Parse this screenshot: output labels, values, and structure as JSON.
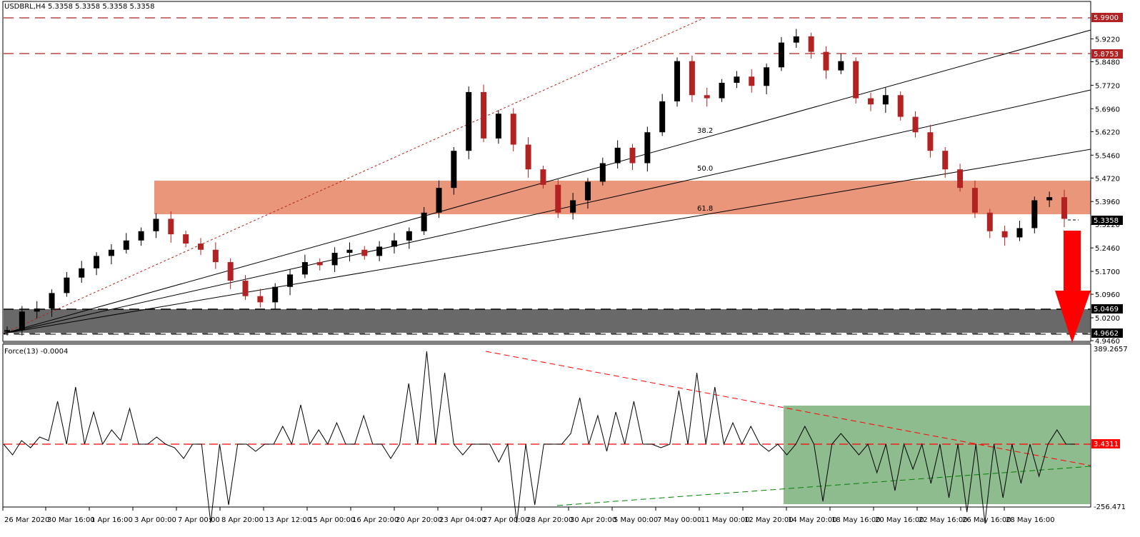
{
  "header": {
    "symbol_title": "USDBRL,H4  5.3358 5.3358 5.3358 5.3358"
  },
  "indicator": {
    "title": "Force(13) -0.0004",
    "axis_max": "389.2657",
    "axis_min": "-256.471",
    "level_label": "3.4311"
  },
  "price_axis": {
    "ticks": [
      "5.9220",
      "5.8480",
      "5.7720",
      "5.6960",
      "5.6220",
      "5.5460",
      "5.4720",
      "5.3960",
      "5.3220",
      "5.2460",
      "5.1700",
      "5.0960",
      "5.0200",
      "4.9460"
    ],
    "marked_levels": [
      {
        "label": "5.9900",
        "style": "red"
      },
      {
        "label": "5.8753",
        "style": "red"
      },
      {
        "label": "5.3358",
        "style": "black"
      },
      {
        "label": "5.0469",
        "style": "black"
      },
      {
        "label": "4.9662",
        "style": "black"
      }
    ]
  },
  "time_axis": {
    "ticks": [
      "26 Mar 2020",
      "30 Mar 16:00",
      "1 Apr 16:00",
      "3 Apr 00:00",
      "7 Apr 00:00",
      "8 Apr 20:00",
      "13 Apr 12:00",
      "15 Apr 00:00",
      "16 Apr 20:00",
      "20 Apr 20:00",
      "23 Apr 04:00",
      "27 Apr 00:00",
      "28 Apr 20:00",
      "30 Apr 20:00",
      "5 May 00:00",
      "7 May 00:00",
      "11 May 00:00",
      "12 May 20:00",
      "14 May 20:00",
      "18 May 16:00",
      "20 May 16:00",
      "22 May 16:00",
      "26 May 16:00",
      "28 May 16:00"
    ]
  },
  "fib_labels": [
    "38.2",
    "50.0",
    "61.8"
  ],
  "colors": {
    "bull_candle": "#000000",
    "bear_candle": "#b22222",
    "resistance_zone": "#e9967a",
    "support_zone": "#696969",
    "force_zone": "#8fbc8f",
    "arrow": "#ff0000",
    "level_tag_red": "#b22222",
    "force_level_tag": "#ff0000"
  },
  "chart_data": [
    {
      "type": "candlestick",
      "title": "USDBRL,H4",
      "ohlc_last": {
        "open": 5.3358,
        "high": 5.3358,
        "low": 5.3358,
        "close": 5.3358
      },
      "ylim": [
        4.946,
        5.99
      ],
      "x_ticks": [
        "26 Mar 2020",
        "30 Mar 16:00",
        "1 Apr 16:00",
        "3 Apr 00:00",
        "7 Apr 00:00",
        "8 Apr 20:00",
        "13 Apr 12:00",
        "15 Apr 00:00",
        "16 Apr 20:00",
        "20 Apr 20:00",
        "23 Apr 04:00",
        "27 Apr 00:00",
        "28 Apr 20:00",
        "30 Apr 20:00",
        "5 May 00:00",
        "7 May 00:00",
        "11 May 00:00",
        "12 May 20:00",
        "14 May 20:00",
        "18 May 16:00",
        "20 May 16:00",
        "22 May 16:00",
        "26 May 16:00",
        "28 May 16:00"
      ],
      "horizontal_levels": [
        5.99,
        5.8753,
        5.0469,
        4.9662
      ],
      "zones": [
        {
          "name": "resistance",
          "from": 5.358,
          "to": 5.4625
        },
        {
          "name": "support",
          "from": 4.9662,
          "to": 5.0469
        }
      ],
      "fibonacci_fan": {
        "origin": 4.9662,
        "high": 5.99,
        "levels": [
          "38.2",
          "50.0",
          "61.8"
        ]
      },
      "annotation": "Red down arrow projecting decline toward 4.9662 support",
      "candles_close_path": [
        4.98,
        5.04,
        5.05,
        5.1,
        5.15,
        5.18,
        5.22,
        5.24,
        5.27,
        5.3,
        5.34,
        5.29,
        5.26,
        5.24,
        5.2,
        5.14,
        5.09,
        5.07,
        5.12,
        5.16,
        5.2,
        5.19,
        5.23,
        5.24,
        5.22,
        5.25,
        5.27,
        5.3,
        5.36,
        5.44,
        5.56,
        5.75,
        5.6,
        5.68,
        5.58,
        5.5,
        5.45,
        5.36,
        5.4,
        5.46,
        5.52,
        5.57,
        5.52,
        5.62,
        5.72,
        5.85,
        5.74,
        5.73,
        5.78,
        5.8,
        5.77,
        5.83,
        5.91,
        5.93,
        5.88,
        5.82,
        5.85,
        5.73,
        5.71,
        5.74,
        5.67,
        5.62,
        5.56,
        5.5,
        5.44,
        5.36,
        5.3,
        5.28,
        5.31,
        5.4,
        5.41,
        5.34
      ]
    },
    {
      "type": "line",
      "title": "Force(13) -0.0004",
      "ylim": [
        -256.471,
        389.2657
      ],
      "reference_level": 3.4311,
      "trendlines": [
        {
          "name": "descending resistance (red)",
          "from": {
            "x": "23 Apr 04:00",
            "y": 389
          },
          "to": {
            "x": "28 May 16:00",
            "y": -20
          }
        },
        {
          "name": "ascending support (green)",
          "from": {
            "x": "28 Apr 20:00",
            "y": -240
          },
          "to": {
            "x": "28 May 16:00",
            "y": -30
          }
        }
      ],
      "highlight_zone": {
        "x_from": "12 May 20:00",
        "x_to": "28 May 16:00",
        "y_from": -235,
        "y_to": 150
      }
    }
  ]
}
